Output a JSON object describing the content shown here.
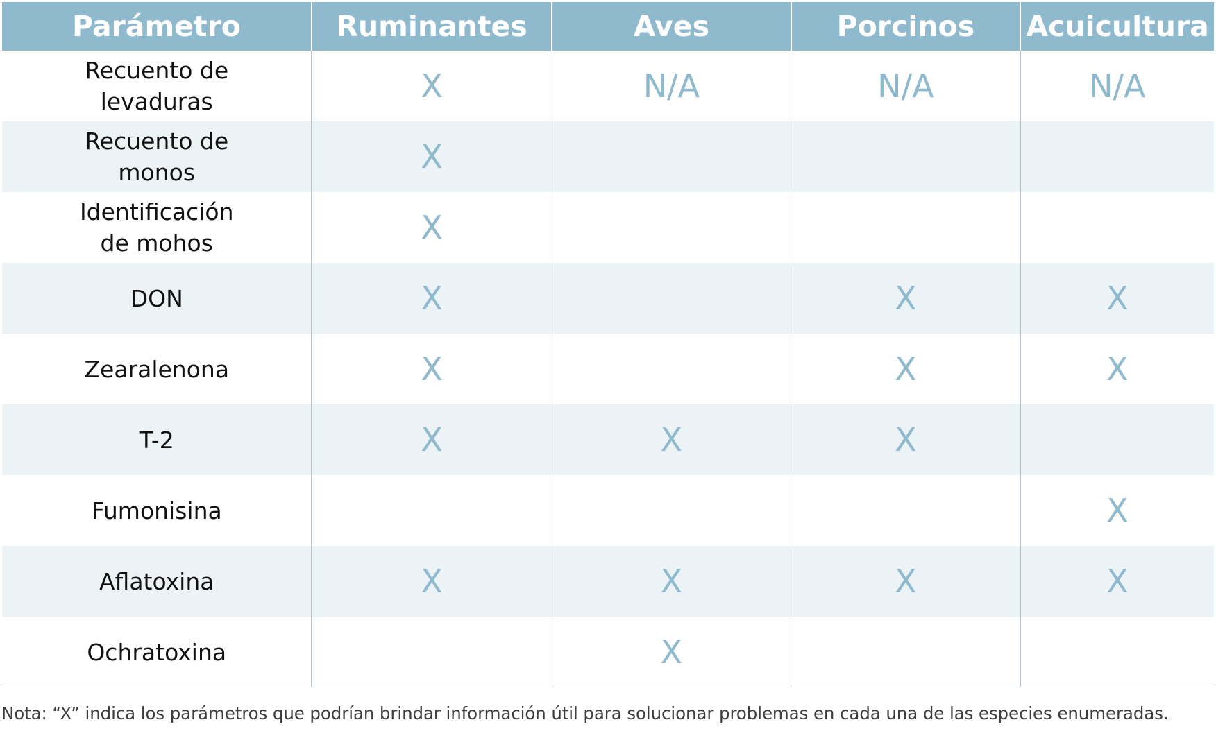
{
  "table": {
    "headers": [
      "Parámetro",
      "Ruminantes",
      "Aves",
      "Porcinos",
      "Acuicultura"
    ],
    "rows": [
      {
        "label": [
          "Recuento de",
          "levaduras"
        ],
        "cells": [
          "X",
          "N/A",
          "N/A",
          "N/A"
        ]
      },
      {
        "label": [
          "Recuento de",
          "monos"
        ],
        "cells": [
          "X",
          "",
          "",
          ""
        ]
      },
      {
        "label": [
          "Identificación",
          "de mohos"
        ],
        "cells": [
          "X",
          "",
          "",
          ""
        ]
      },
      {
        "label": [
          "DON"
        ],
        "cells": [
          "X",
          "",
          "X",
          "X"
        ]
      },
      {
        "label": [
          "Zearalenona"
        ],
        "cells": [
          "X",
          "",
          "X",
          "X"
        ]
      },
      {
        "label": [
          "T-2"
        ],
        "cells": [
          "X",
          "X",
          "X",
          ""
        ]
      },
      {
        "label": [
          "Fumonisina"
        ],
        "cells": [
          "",
          "",
          "",
          "X"
        ]
      },
      {
        "label": [
          "Aflatoxina"
        ],
        "cells": [
          "X",
          "X",
          "X",
          "X"
        ]
      },
      {
        "label": [
          "Ochratoxina"
        ],
        "cells": [
          "",
          "X",
          "",
          ""
        ]
      }
    ]
  },
  "note": "Nota: “X” indica los parámetros que podrían brindar información útil para solucionar problemas en cada una de las especies enumeradas.",
  "colors": {
    "header_bg": "#8fb9cc",
    "row_alt_bg": "#ebf3f7",
    "mark": "#8fb9cc"
  }
}
